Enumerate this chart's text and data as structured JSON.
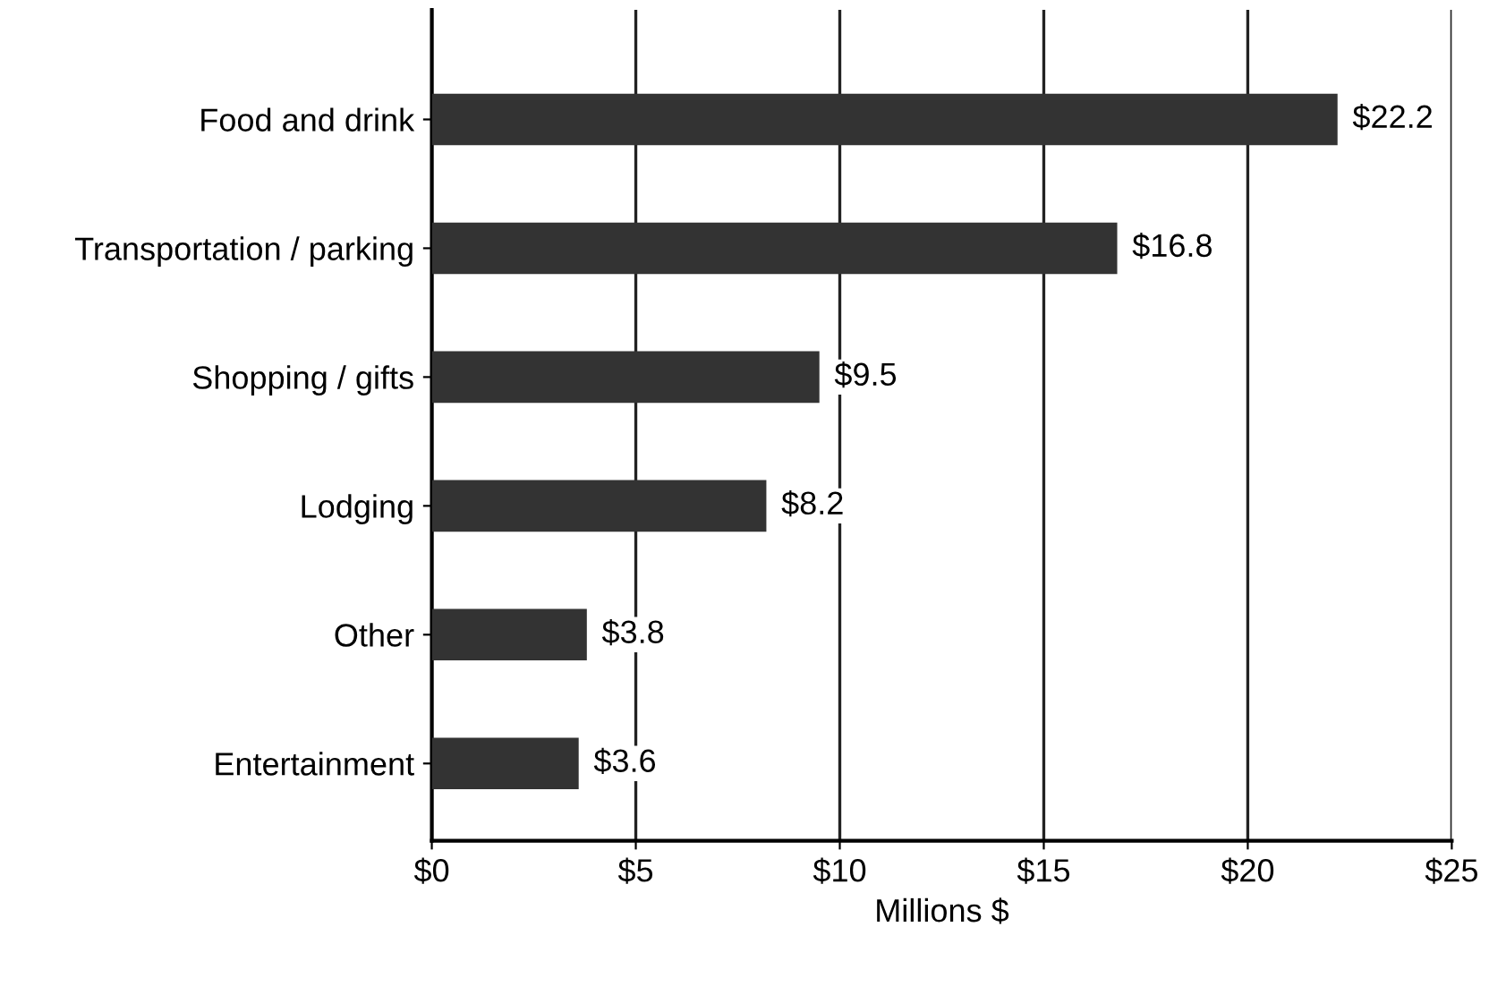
{
  "chart_data": {
    "type": "bar",
    "orientation": "horizontal",
    "xlabel": "Millions $",
    "categories": [
      "Food and drink",
      "Transportation / parking",
      "Shopping / gifts",
      "Lodging",
      "Other",
      "Entertainment"
    ],
    "values": [
      22.2,
      16.8,
      9.5,
      8.2,
      3.8,
      3.6
    ],
    "value_labels": [
      "$22.2",
      "$16.8",
      "$9.5",
      "$8.2",
      "$3.8",
      "$3.6"
    ],
    "color": "#333333",
    "xlim": [
      0,
      25
    ],
    "xticks": [
      {
        "value": 0,
        "label": "$0"
      },
      {
        "value": 5,
        "label": "$5"
      },
      {
        "value": 10,
        "label": "$10"
      },
      {
        "value": 15,
        "label": "$15"
      },
      {
        "value": 20,
        "label": "$20"
      },
      {
        "value": 25,
        "label": "$25"
      }
    ],
    "grid": "x",
    "legend": false
  }
}
